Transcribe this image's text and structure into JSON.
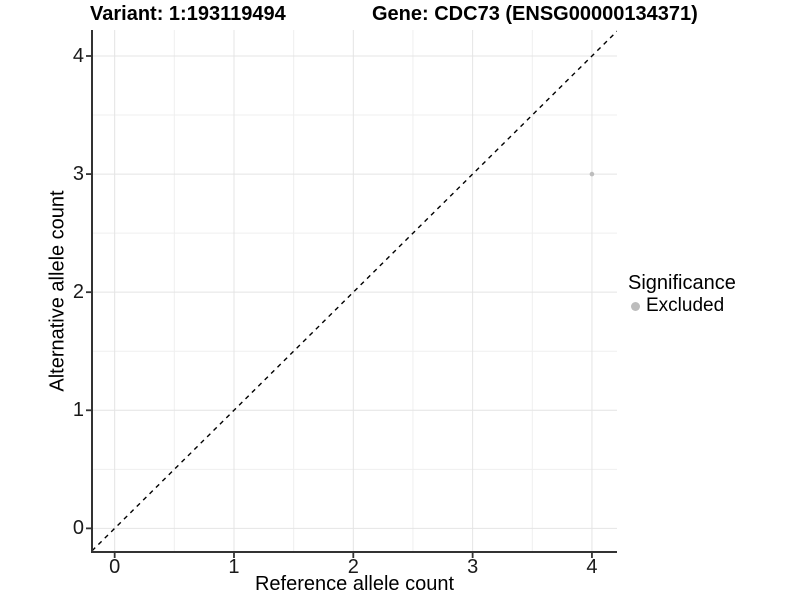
{
  "chart_data": {
    "type": "scatter",
    "title_left": "Variant: 1:193119494",
    "title_right": "Gene: CDC73 (ENSG00000134371)",
    "xlabel": "Reference allele count",
    "ylabel": "Alternative allele count",
    "xlim": [
      -0.19,
      4.21
    ],
    "ylim": [
      -0.2,
      4.22
    ],
    "x_ticks": [
      0,
      1,
      2,
      3,
      4
    ],
    "y_ticks": [
      0,
      1,
      2,
      3,
      4
    ],
    "x_minor_ticks": [
      0.5,
      1.5,
      2.5,
      3.5
    ],
    "y_minor_ticks": [
      0.5,
      1.5,
      2.5,
      3.5
    ],
    "grid": "major+minor",
    "points": [
      {
        "x": 4,
        "y": 3,
        "significance": "Excluded"
      }
    ],
    "reference_line": {
      "type": "identity y=x",
      "style": "dashed"
    },
    "legend": {
      "title": "Significance",
      "position": "right",
      "items": [
        {
          "label": "Excluded",
          "color": "#bdbdbd"
        }
      ]
    }
  },
  "colors": {
    "background": "#ffffff",
    "point": "#bdbdbd",
    "grid_major": "#e4e4e4",
    "grid_minor": "#efefef",
    "axis": "#333333",
    "dashed_line": "#000000",
    "tick_text": "#1a1a1a",
    "text": "#000000"
  }
}
